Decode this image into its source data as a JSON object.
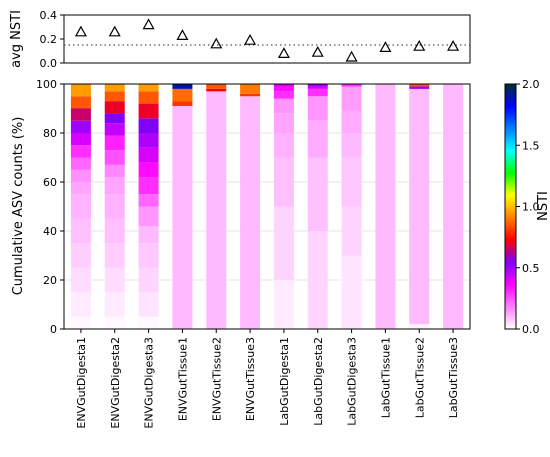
{
  "chart_data": [
    {
      "type": "scatter",
      "marker": "open-triangle",
      "ylabel": "avg NSTI",
      "ylim": [
        0,
        0.4
      ],
      "yticks": [
        "0.0",
        "0.2",
        "0.4"
      ],
      "reference_line": 0.15,
      "reference_style": "dotted",
      "categories": [
        "ENVGutDigesta1",
        "ENVGutDigesta2",
        "ENVGutDigesta3",
        "ENVGutTissue1",
        "ENVGutTissue2",
        "ENVGutTissue3",
        "LabGutDigesta1",
        "LabGutDigesta2",
        "LabGutDigesta3",
        "LabGutTissue1",
        "LabGutTissue2",
        "LabGutTissue3"
      ],
      "values": [
        0.26,
        0.26,
        0.32,
        0.23,
        0.16,
        0.19,
        0.08,
        0.09,
        0.05,
        0.13,
        0.14,
        0.14
      ]
    },
    {
      "type": "bar",
      "stacked": true,
      "ylabel": "Cumulative ASV counts (%)",
      "ylim": [
        0,
        100
      ],
      "yticks": [
        "0",
        "20",
        "40",
        "60",
        "80",
        "100"
      ],
      "grid": true,
      "categories": [
        "ENVGutDigesta1",
        "ENVGutDigesta2",
        "ENVGutDigesta3",
        "ENVGutTissue1",
        "ENVGutTissue2",
        "ENVGutTissue3",
        "LabGutDigesta1",
        "LabGutDigesta2",
        "LabGutDigesta3",
        "LabGutTissue1",
        "LabGutTissue2",
        "LabGutTissue3"
      ],
      "bars": [
        [
          [
            5,
            0.01
          ],
          [
            15,
            0.03
          ],
          [
            25,
            0.05
          ],
          [
            35,
            0.07
          ],
          [
            45,
            0.09
          ],
          [
            55,
            0.11
          ],
          [
            60,
            0.13
          ],
          [
            65,
            0.16
          ],
          [
            70,
            0.22
          ],
          [
            75,
            0.3
          ],
          [
            80,
            0.42
          ],
          [
            85,
            0.5
          ],
          [
            90,
            0.65
          ],
          [
            95,
            0.85
          ],
          [
            100,
            0.95
          ]
        ],
        [
          [
            5,
            0.01
          ],
          [
            15,
            0.03
          ],
          [
            25,
            0.05
          ],
          [
            35,
            0.07
          ],
          [
            45,
            0.09
          ],
          [
            55,
            0.11
          ],
          [
            62,
            0.13
          ],
          [
            67,
            0.17
          ],
          [
            73,
            0.25
          ],
          [
            79,
            0.32
          ],
          [
            84,
            0.45
          ],
          [
            88,
            0.55
          ],
          [
            93,
            0.7
          ],
          [
            97,
            0.85
          ],
          [
            100,
            0.95
          ]
        ],
        [
          [
            5,
            0.01
          ],
          [
            15,
            0.04
          ],
          [
            25,
            0.06
          ],
          [
            35,
            0.08
          ],
          [
            42,
            0.1
          ],
          [
            50,
            0.15
          ],
          [
            55,
            0.22
          ],
          [
            62,
            0.3
          ],
          [
            68,
            0.35
          ],
          [
            74,
            0.42
          ],
          [
            80,
            0.48
          ],
          [
            86,
            0.55
          ],
          [
            92,
            0.7
          ],
          [
            97,
            0.85
          ],
          [
            100,
            0.95
          ]
        ],
        [
          [
            91,
            0.1
          ],
          [
            93,
            0.8
          ],
          [
            98,
            0.88
          ],
          [
            100,
            1.9
          ]
        ],
        [
          [
            97,
            0.1
          ],
          [
            98,
            0.7
          ],
          [
            100,
            0.85
          ]
        ],
        [
          [
            95,
            0.1
          ],
          [
            96,
            0.8
          ],
          [
            100,
            0.9
          ]
        ],
        [
          [
            20,
            0.03
          ],
          [
            50,
            0.06
          ],
          [
            70,
            0.09
          ],
          [
            80,
            0.11
          ],
          [
            88,
            0.13
          ],
          [
            94,
            0.15
          ],
          [
            97,
            0.3
          ],
          [
            99,
            0.35
          ],
          [
            100,
            0.42
          ]
        ],
        [
          [
            40,
            0.06
          ],
          [
            70,
            0.09
          ],
          [
            85,
            0.12
          ],
          [
            95,
            0.15
          ],
          [
            98,
            0.3
          ],
          [
            99,
            0.42
          ],
          [
            100,
            0.5
          ]
        ],
        [
          [
            30,
            0.04
          ],
          [
            50,
            0.06
          ],
          [
            70,
            0.08
          ],
          [
            80,
            0.1
          ],
          [
            89,
            0.12
          ],
          [
            99,
            0.14
          ],
          [
            100,
            0.3
          ]
        ],
        [
          [
            100,
            0.1
          ]
        ],
        [
          [
            2,
            0.02
          ],
          [
            98,
            0.1
          ],
          [
            99,
            0.5
          ],
          [
            100,
            0.85
          ]
        ],
        [
          [
            100,
            0.1
          ]
        ]
      ]
    },
    {
      "type": "colorbar",
      "label": "NSTI",
      "range": [
        0,
        2
      ],
      "ticks": [
        "0.0",
        "0.5",
        "1.0",
        "1.5",
        "2.0"
      ],
      "colormap": [
        "#ffffff",
        "#ff80ff",
        "#ff00ff",
        "#8000ff",
        "#ff0000",
        "#ff8000",
        "#ffff00",
        "#00ff00",
        "#00ffff",
        "#0080ff",
        "#0000ff",
        "#003030"
      ]
    }
  ]
}
